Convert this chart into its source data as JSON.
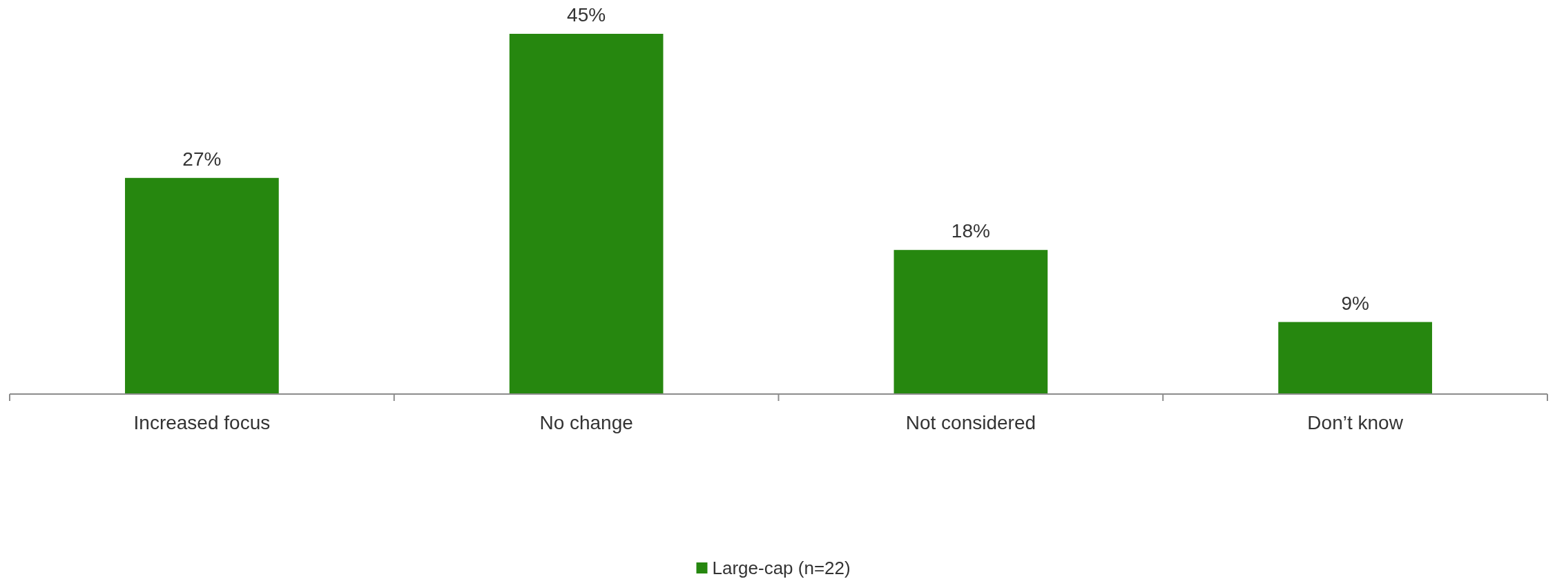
{
  "chart_data": {
    "type": "bar",
    "categories": [
      "Increased focus",
      "No change",
      "Not considered",
      "Don’t know"
    ],
    "series": [
      {
        "name": "Large-cap (n=22)",
        "color": "#26870f",
        "values": [
          27,
          45,
          18,
          9
        ],
        "value_labels": [
          "27%",
          "45%",
          "18%",
          "9%"
        ]
      }
    ],
    "legend": "bottom"
  }
}
